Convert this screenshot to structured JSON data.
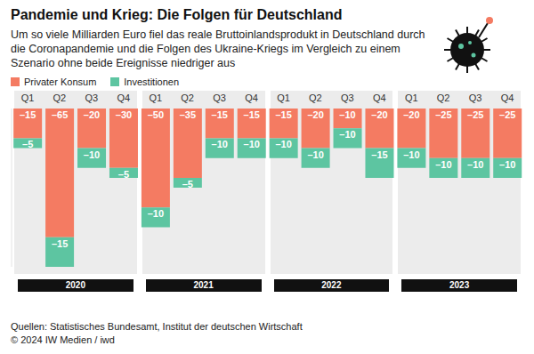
{
  "chart_data": {
    "type": "bar",
    "title": "Pandemie und Krieg: Die Folgen für Deutschland",
    "subtitle": "Um so viele Milliarden Euro fiel das reale Bruttoinlandsprodukt in Deutschland durch die Coronapandemie und die Folgen des Ukraine-Kriegs im Vergleich zu einem Szenario ohne beide Ereignisse niedriger aus",
    "categories": [
      "Q1",
      "Q2",
      "Q3",
      "Q4",
      "Q1",
      "Q2",
      "Q3",
      "Q4",
      "Q1",
      "Q2",
      "Q3",
      "Q4",
      "Q1",
      "Q2",
      "Q3",
      "Q4"
    ],
    "year_labels": [
      "2020",
      "2021",
      "2022",
      "2023"
    ],
    "series": [
      {
        "name": "Privater Konsum",
        "color": "#F47B62",
        "values": [
          -15,
          -65,
          -20,
          -30,
          -50,
          -35,
          -15,
          -15,
          -15,
          -20,
          -10,
          -20,
          -20,
          -25,
          -25,
          -25
        ],
        "value_labels": [
          "–15",
          "–65",
          "–20",
          "–30",
          "–50",
          "–35",
          "–15",
          "–15",
          "–15",
          "–20",
          "–10",
          "–20",
          "–20",
          "–25",
          "–25",
          "–25"
        ]
      },
      {
        "name": "Investitionen",
        "color": "#5DC5A1",
        "values": [
          -5,
          -15,
          -10,
          -5,
          -10,
          -5,
          -10,
          -10,
          -10,
          -10,
          -10,
          -15,
          -10,
          -10,
          -10,
          -10
        ],
        "value_labels": [
          "–5",
          "–15",
          "–10",
          "–5",
          "–10",
          "–5",
          "–10",
          "–10",
          "–10",
          "–10",
          "–10",
          "–15",
          "–10",
          "–10",
          "–10",
          "–10"
        ]
      }
    ],
    "ylim": [
      -80,
      0
    ],
    "stacked": true,
    "data_labels": true,
    "tick_labels": "x",
    "legend": "top-left",
    "grid": false,
    "source": "Quellen: Statistisches Bundesamt, Institut der deutschen Wirtschaft",
    "copyright": "© 2024 IW Medien / iwd"
  }
}
